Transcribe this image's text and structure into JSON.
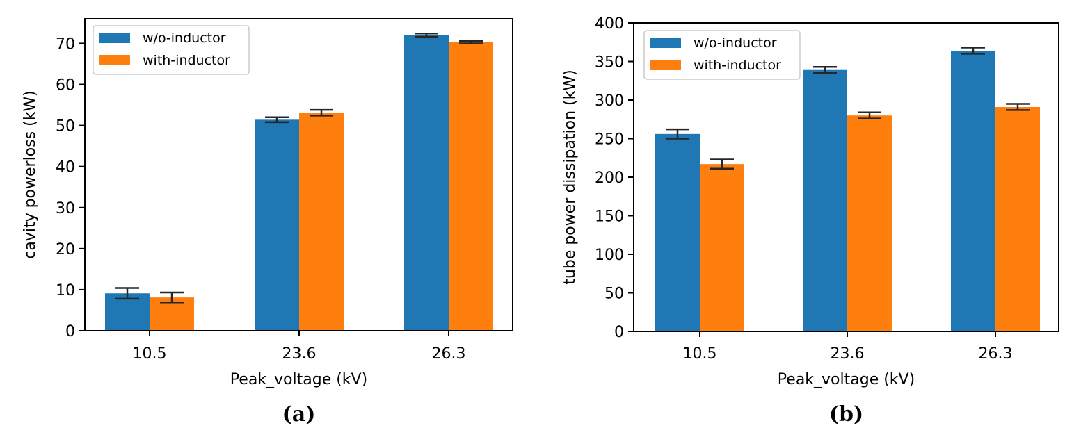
{
  "chart_data": [
    {
      "type": "bar",
      "panel": "a",
      "caption": "(a)",
      "title": "",
      "xlabel": "Peak_voltage (kV)",
      "ylabel": "cavity powerloss (kW)",
      "categories": [
        "10.5",
        "23.6",
        "26.3"
      ],
      "ylim": [
        0,
        76
      ],
      "yticks": [
        0,
        10,
        20,
        30,
        40,
        50,
        60,
        70
      ],
      "grid": false,
      "legend_position": "top-left",
      "series": [
        {
          "name": "w/o-inductor",
          "color": "#1f77b4",
          "values": [
            9.1,
            51.4,
            72.0
          ],
          "errors": [
            1.3,
            0.6,
            0.4
          ]
        },
        {
          "name": "with-inductor",
          "color": "#ff7f0e",
          "values": [
            8.1,
            53.1,
            70.3
          ],
          "errors": [
            1.2,
            0.7,
            0.3
          ]
        }
      ]
    },
    {
      "type": "bar",
      "panel": "b",
      "caption": "(b)",
      "title": "",
      "xlabel": "Peak_voltage (kV)",
      "ylabel": "tube power dissipation (kW)",
      "categories": [
        "10.5",
        "23.6",
        "26.3"
      ],
      "ylim": [
        0,
        400
      ],
      "yticks": [
        0,
        50,
        100,
        150,
        200,
        250,
        300,
        350,
        400
      ],
      "grid": false,
      "legend_position": "top-left",
      "series": [
        {
          "name": "w/o-inductor",
          "color": "#1f77b4",
          "values": [
            256,
            339,
            364
          ],
          "errors": [
            6,
            4,
            4
          ]
        },
        {
          "name": "with-inductor",
          "color": "#ff7f0e",
          "values": [
            217,
            280,
            291
          ],
          "errors": [
            6,
            4,
            4
          ]
        }
      ]
    }
  ]
}
